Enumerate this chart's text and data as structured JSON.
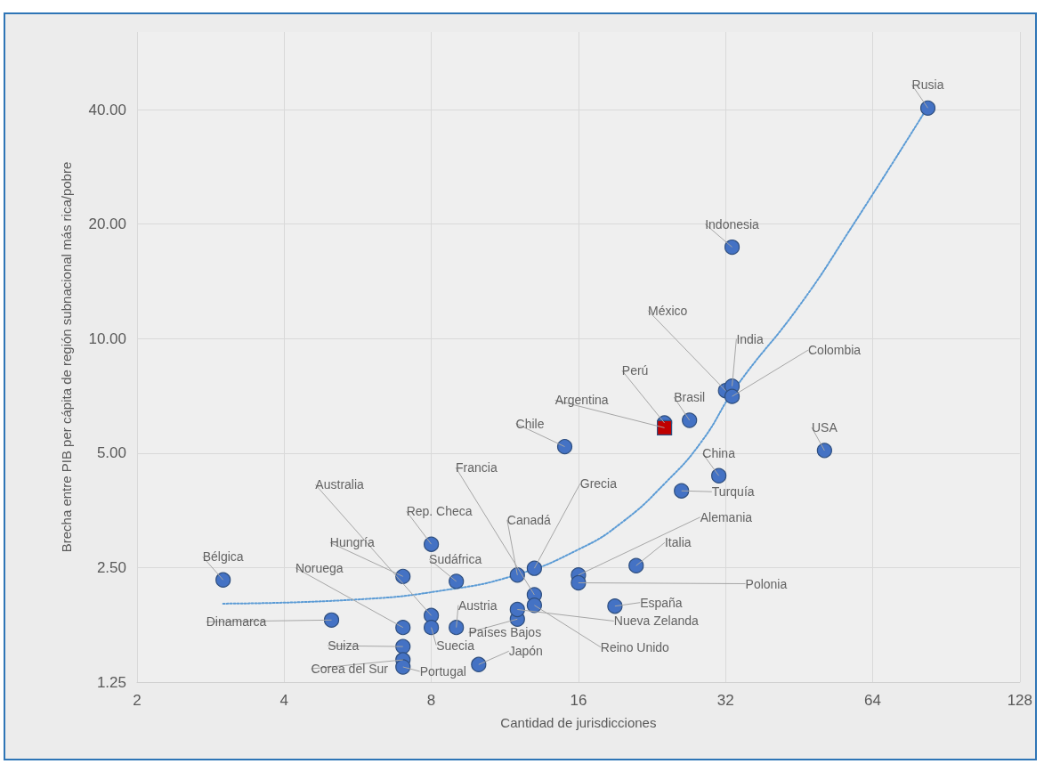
{
  "chart_data": {
    "type": "scatter",
    "xlabel": "Cantidad de jurisdicciones",
    "ylabel": "Brecha entre PIB per cápita de región subnacional más rica/pobre",
    "log": "xy",
    "xlim": [
      2,
      128
    ],
    "xticks": [
      2,
      4,
      8,
      16,
      32,
      64,
      128
    ],
    "ylim": [
      1.25,
      64
    ],
    "yticks": [
      {
        "value": 1.25,
        "label": "1.25"
      },
      {
        "value": 2.5,
        "label": "2.50"
      },
      {
        "value": 5,
        "label": "5.00"
      },
      {
        "value": 10,
        "label": "10.00"
      },
      {
        "value": 20,
        "label": "20.00"
      },
      {
        "value": 40,
        "label": "40.00"
      }
    ],
    "grid": true,
    "series": [
      {
        "type": "scatter",
        "marker": "circle",
        "color": "#4472c4",
        "x": [
          3,
          5,
          7,
          7,
          7,
          7,
          7,
          8,
          8,
          9,
          8,
          9,
          12,
          10,
          12,
          13,
          13,
          12,
          13,
          16,
          16,
          21,
          19,
          26,
          31,
          51,
          15,
          24,
          27,
          32,
          33,
          33,
          33,
          83
        ],
        "values": [
          2.32,
          1.82,
          1.74,
          2.37,
          1.55,
          1.43,
          1.37,
          1.87,
          2.88,
          2.3,
          1.74,
          1.74,
          1.83,
          1.39,
          2.39,
          2.12,
          2.49,
          1.94,
          1.99,
          2.39,
          2.28,
          2.53,
          1.98,
          3.98,
          4.36,
          5.08,
          5.2,
          6.0,
          6.1,
          7.3,
          7.5,
          7.05,
          17.4,
          40.4
        ]
      },
      {
        "type": "scatter",
        "marker": "square",
        "color": "#c00000",
        "x": [
          24
        ],
        "values": [
          5.83
        ]
      },
      {
        "type": "line",
        "marker": "none",
        "line_style": "dotted",
        "color": "#5b9bd5",
        "x": [
          3,
          5.6,
          8.5,
          11.9,
          16,
          19.6,
          24.2,
          28.6,
          33.6,
          45.3,
          57.6,
          81.6
        ],
        "values": [
          2.01,
          2.06,
          2.18,
          2.39,
          2.79,
          3.28,
          4.2,
          5.37,
          7.45,
          12.2,
          19.4,
          39.3
        ]
      }
    ],
    "annotations": [
      {
        "text": "Bélgica",
        "x": 3,
        "y": 2.32
      },
      {
        "text": "Dinamarca",
        "x": 5,
        "y": 1.82
      },
      {
        "text": "Noruega",
        "x": 7,
        "y": 1.74
      },
      {
        "text": "Hungría",
        "x": 7,
        "y": 2.37
      },
      {
        "text": "Suiza",
        "x": 7,
        "y": 1.55
      },
      {
        "text": "Corea del Sur",
        "x": 7,
        "y": 1.43
      },
      {
        "text": "Portugal",
        "x": 7,
        "y": 1.37
      },
      {
        "text": "Australia",
        "x": 8,
        "y": 1.87
      },
      {
        "text": "Rep. Checa",
        "x": 8,
        "y": 2.88
      },
      {
        "text": "Sudáfrica",
        "x": 9,
        "y": 2.3
      },
      {
        "text": "Suecia",
        "x": 8,
        "y": 1.74
      },
      {
        "text": "Austria",
        "x": 9,
        "y": 1.74
      },
      {
        "text": "Países Bajos",
        "x": 12,
        "y": 1.83
      },
      {
        "text": "Japón",
        "x": 10,
        "y": 1.39
      },
      {
        "text": "Canadá",
        "x": 12,
        "y": 2.39
      },
      {
        "text": "Francia",
        "x": 13,
        "y": 2.12
      },
      {
        "text": "Grecia",
        "x": 13,
        "y": 2.49
      },
      {
        "text": "Nueva Zelanda",
        "x": 12,
        "y": 1.94
      },
      {
        "text": "Reino Unido",
        "x": 13,
        "y": 1.99
      },
      {
        "text": "Alemania",
        "x": 16,
        "y": 2.39
      },
      {
        "text": "Polonia",
        "x": 16,
        "y": 2.28
      },
      {
        "text": "Italia",
        "x": 21,
        "y": 2.53
      },
      {
        "text": "España",
        "x": 19,
        "y": 1.98
      },
      {
        "text": "Turquía",
        "x": 26,
        "y": 3.98
      },
      {
        "text": "China",
        "x": 31,
        "y": 4.36
      },
      {
        "text": "USA",
        "x": 51,
        "y": 5.08
      },
      {
        "text": "Chile",
        "x": 15,
        "y": 5.2
      },
      {
        "text": "Perú",
        "x": 24,
        "y": 6.0
      },
      {
        "text": "Brasil",
        "x": 27,
        "y": 6.1
      },
      {
        "text": "México",
        "x": 32,
        "y": 7.3
      },
      {
        "text": "India",
        "x": 33,
        "y": 7.5
      },
      {
        "text": "Colombia",
        "x": 33,
        "y": 7.05
      },
      {
        "text": "Indonesia",
        "x": 33,
        "y": 17.4
      },
      {
        "text": "Rusia",
        "x": 83,
        "y": 40.4
      },
      {
        "text": "Argentina",
        "x": 24,
        "y": 5.83
      }
    ]
  }
}
